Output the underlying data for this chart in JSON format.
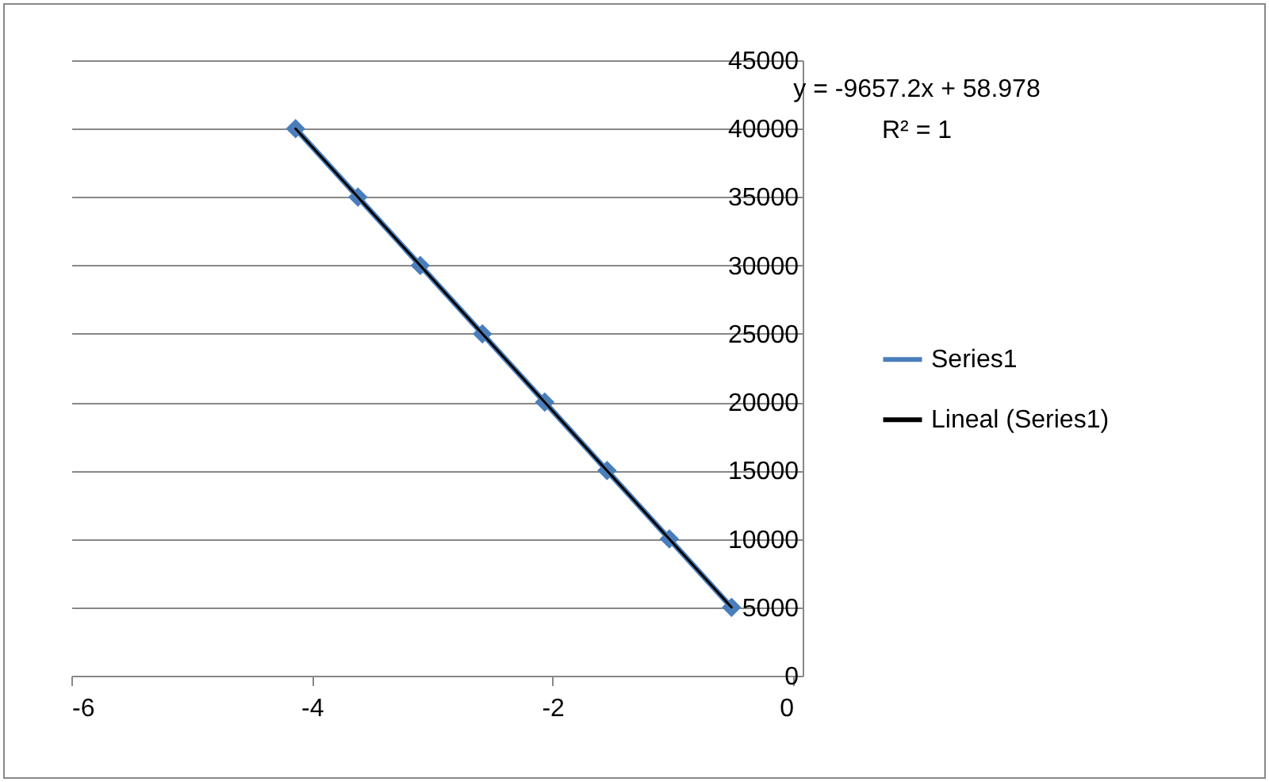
{
  "chart_data": {
    "type": "line",
    "x": [
      -4.136,
      -3.618,
      -3.1,
      -2.583,
      -2.065,
      -1.547,
      -1.029,
      -0.512
    ],
    "series": [
      {
        "name": "Series1",
        "color": "#4a7ebb",
        "values": [
          40000,
          35000,
          30000,
          25000,
          20000,
          15000,
          10000,
          5000
        ],
        "marker": "diamond"
      },
      {
        "name": "Lineal (Series1)",
        "color": "#000000",
        "type": "line",
        "x": [
          -4.136,
          -0.512
        ],
        "values": [
          40000,
          5000
        ],
        "marker": "none"
      }
    ],
    "xlim": [
      -6,
      0
    ],
    "xticks": [
      -6,
      -4,
      -2,
      0
    ],
    "ylim": [
      0,
      45000
    ],
    "yticks": [
      0,
      5000,
      10000,
      15000,
      20000,
      25000,
      30000,
      35000,
      40000,
      45000
    ],
    "grid": "y",
    "legend": "right",
    "line_style": "solid",
    "annotations": [
      "y = -9657.2x + 58.978",
      "R² = 1"
    ]
  }
}
